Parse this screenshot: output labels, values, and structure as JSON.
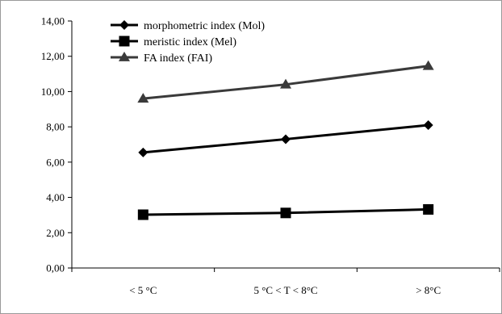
{
  "chart_data": {
    "type": "line",
    "categories": [
      "< 5 °C",
      "5 °C < T < 8°C",
      "> 8°C"
    ],
    "y_ticks": [
      "0,00",
      "2,00",
      "4,00",
      "6,00",
      "8,00",
      "10,00",
      "12,00",
      "14,00"
    ],
    "ylim": [
      0,
      14
    ],
    "grid": false,
    "legend_position": "top-left",
    "series": [
      {
        "name": "morphometric index (Mol)",
        "values": [
          6.55,
          7.3,
          8.1
        ],
        "marker": "diamond",
        "color": "#000000"
      },
      {
        "name": "meristic index (Mel)",
        "values": [
          3.02,
          3.12,
          3.32
        ],
        "marker": "square",
        "color": "#000000"
      },
      {
        "name": "FA index (FAI)",
        "values": [
          9.6,
          10.4,
          11.45
        ],
        "marker": "triangle",
        "color": "#3a3a3a"
      }
    ]
  }
}
